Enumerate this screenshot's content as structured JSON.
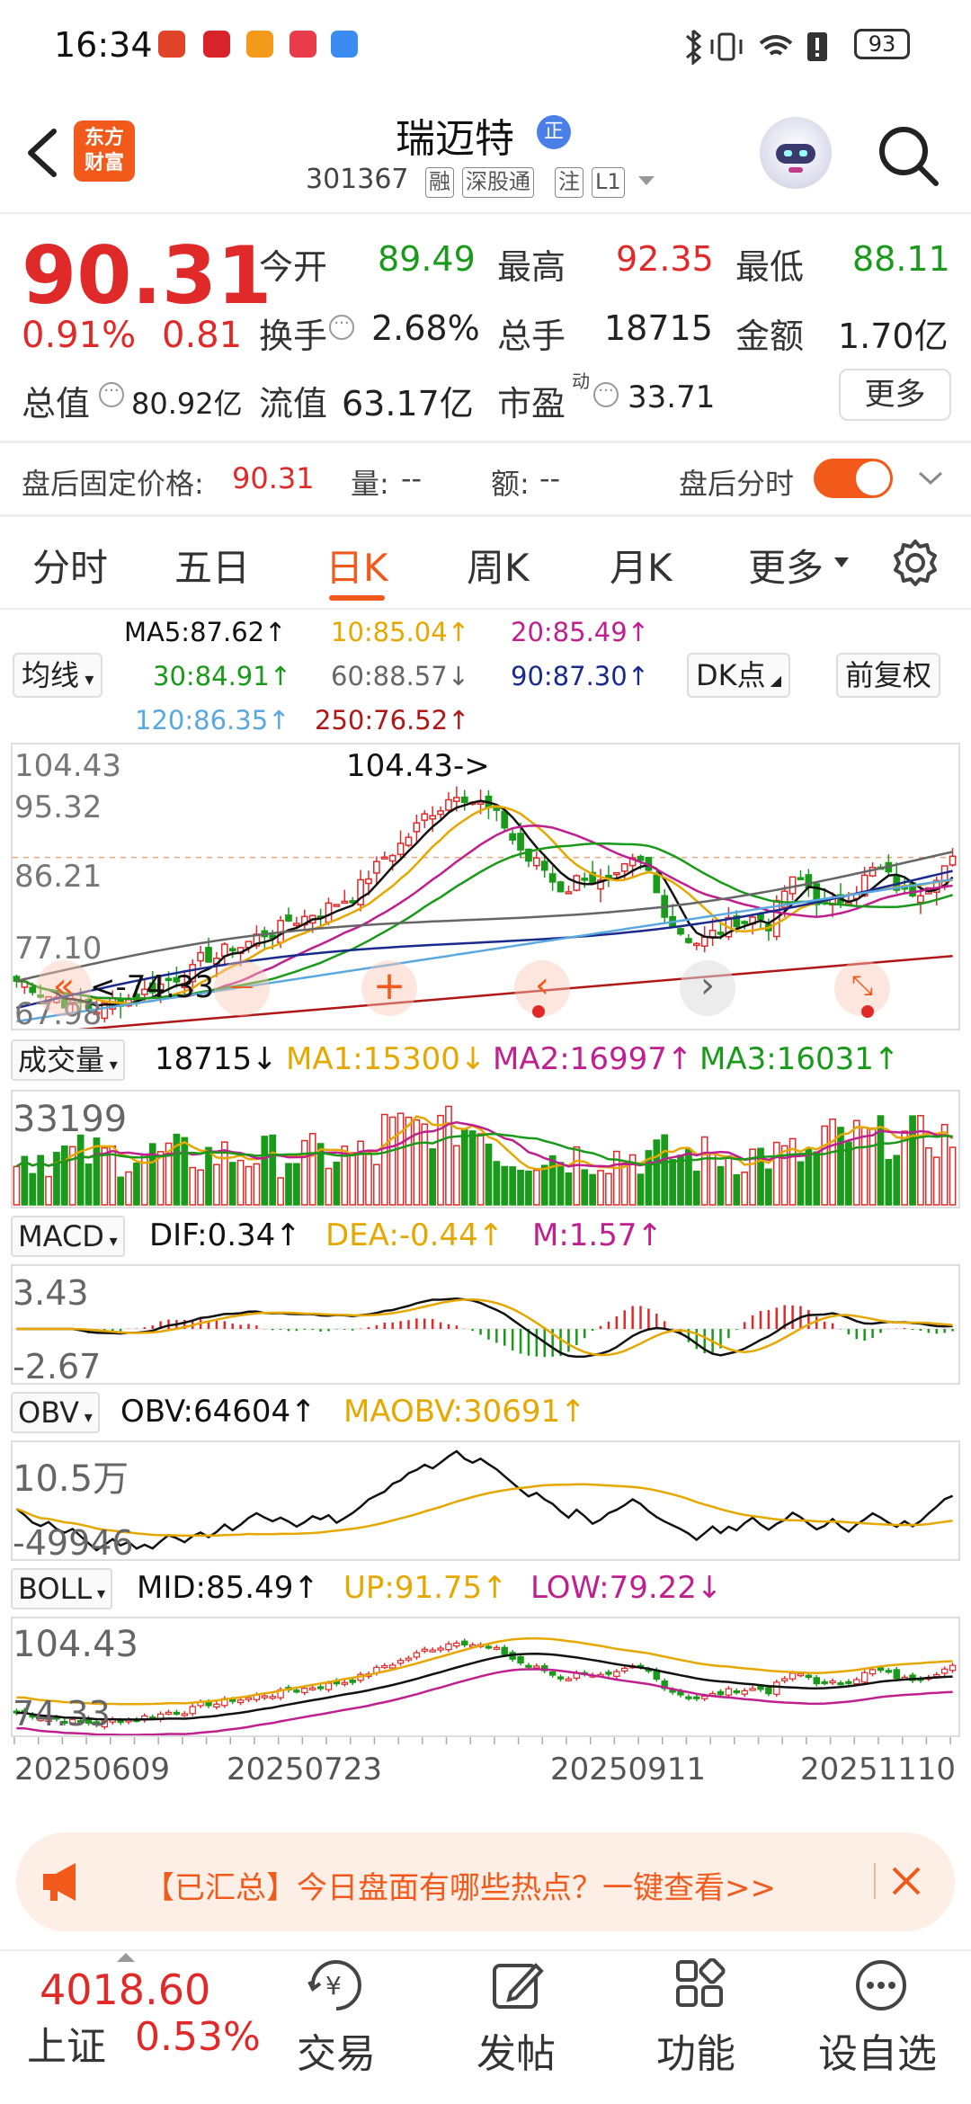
{
  "status_bar": {
    "time": "16:34",
    "battery": "93"
  },
  "header": {
    "logo_text": "东方\n财富",
    "logo_line1": "东方",
    "logo_line2": "财富",
    "stock_name": "瑞迈特",
    "stock_tag": "正",
    "stock_code": "301367",
    "badges": [
      "融",
      "深股通",
      "注",
      "L1"
    ]
  },
  "quote": {
    "price": "90.31",
    "change_pct": "0.91%",
    "change": "0.81",
    "open_label": "今开",
    "open": "89.49",
    "high_label": "最高",
    "high": "92.35",
    "low_label": "最低",
    "low": "88.11",
    "turnover_label": "换手",
    "turnover": "2.68%",
    "volume_label": "总手",
    "volume": "18715",
    "amount_label": "金额",
    "amount": "1.70亿",
    "mktcap_label": "总值",
    "mktcap": "80.92亿",
    "float_label": "流值",
    "float_cap": "63.17亿",
    "pe_label": "市盈",
    "pe_sup": "动",
    "pe": "33.71",
    "more_label": "更多"
  },
  "after_hours": {
    "fixed_price_label": "盘后固定价格:",
    "fixed_price": "90.31",
    "vol_label": "量:",
    "vol": "--",
    "amt_label": "额:",
    "amt": "--",
    "toggle_label": "盘后分时",
    "toggle_on": true
  },
  "tabs": [
    "分时",
    "五日",
    "日K",
    "周K",
    "月K",
    "更多"
  ],
  "active_tab": "日K",
  "ma": {
    "ma5": "MA5:87.62↑",
    "ma10": "10:85.04↑",
    "ma20": "20:85.49↑",
    "ma30": "30:84.91↑",
    "ma60": "60:88.57↓",
    "ma90": "90:87.30↑",
    "ma120": "120:86.35↑",
    "ma250": "250:76.52↑",
    "indicator_select": "均线",
    "dk_button": "DK点",
    "adjust_button": "前复权"
  },
  "kline": {
    "y_labels": [
      "104.43",
      "95.32",
      "86.21",
      "77.10",
      "67.98"
    ],
    "max_annotation": "104.43->",
    "min_annotation": "<-74.33"
  },
  "volume_panel": {
    "select": "成交量",
    "value": "18715↓",
    "ma1": "MA1:15300↓",
    "ma2": "MA2:16997↑",
    "ma3": "MA3:16031↑",
    "y_label": "33199"
  },
  "macd_panel": {
    "select": "MACD",
    "dif": "DIF:0.34↑",
    "dea": "DEA:-0.44↑",
    "m": "M:1.57↑",
    "y_top": "3.43",
    "y_bottom": "-2.67"
  },
  "obv_panel": {
    "select": "OBV",
    "obv": "OBV:64604↑",
    "maobv": "MAOBV:30691↑",
    "y_top": "10.5万",
    "y_bottom": "-49946"
  },
  "boll_panel": {
    "select": "BOLL",
    "mid": "MID:85.49↑",
    "up": "UP:91.75↑",
    "low": "LOW:79.22↓",
    "y_top": "104.43",
    "y_bottom": "74.33"
  },
  "dates": [
    "20250609",
    "20250723",
    "20250911",
    "20251110"
  ],
  "ad_banner": {
    "text": "【已汇总】今日盘面有哪些热点？一键查看>>"
  },
  "bottom_nav": {
    "index_value": "4018.60",
    "index_name": "上证",
    "index_pct": "0.53%",
    "items": [
      "交易",
      "发帖",
      "功能",
      "设自选"
    ]
  },
  "colors": {
    "up": "#e02a2a",
    "down": "#1a9a1a",
    "accent": "#f25a1c",
    "ma5": "#111111",
    "ma10": "#e6b800",
    "ma20": "#c0208f",
    "ma30": "#1a9a1a",
    "ma60": "#666666",
    "ma90": "#1a2a8c",
    "ma120": "#5aa8e0",
    "ma250": "#b01818"
  }
}
